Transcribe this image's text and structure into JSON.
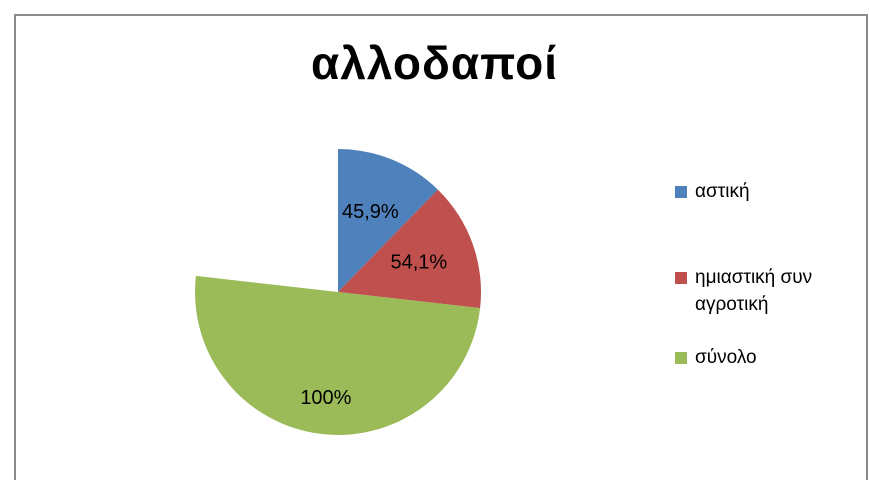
{
  "chart_data": {
    "type": "pie",
    "title": "αλλοδαποί",
    "legend_position": "right",
    "slices": [
      {
        "name": "αστική",
        "label": "45,9%",
        "fraction": 0.123,
        "color": "#4f81bd"
      },
      {
        "name": "ημιαστική συν αγροτική",
        "label": "54,1%",
        "fraction": 0.145,
        "color": "#c0504d"
      },
      {
        "name": "σύνολο",
        "label": "100%",
        "fraction": 0.5,
        "color": "#9bbb59"
      }
    ]
  }
}
